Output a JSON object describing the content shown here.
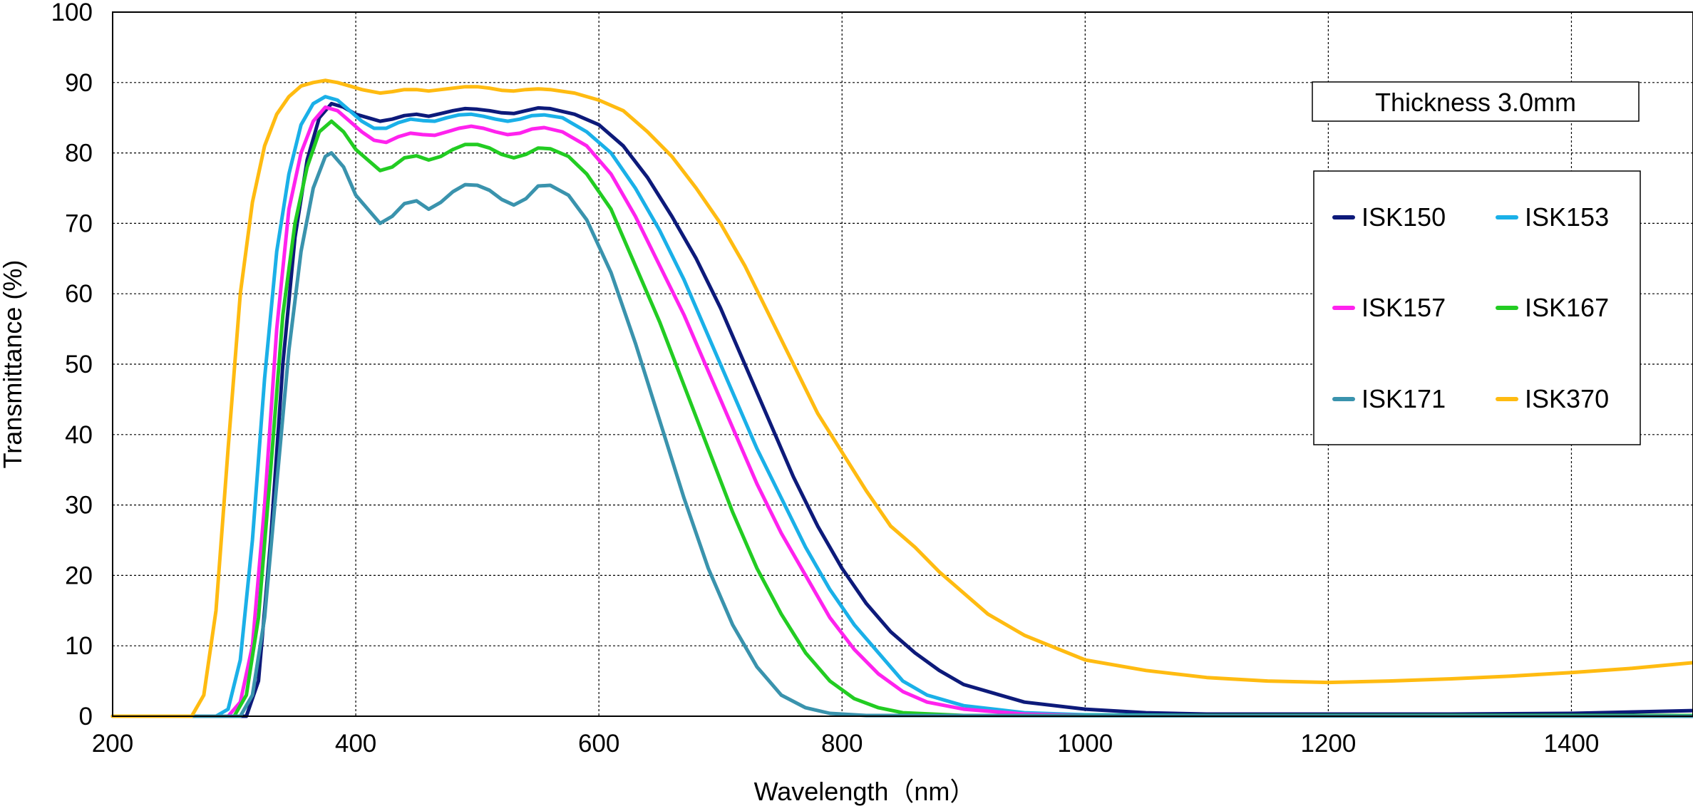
{
  "chart_data": {
    "type": "line",
    "title": "",
    "xlabel": "Wavelength（nm）",
    "ylabel": "Transmittance (%)",
    "xlim": [
      200,
      1500
    ],
    "ylim": [
      0,
      100
    ],
    "xticks": [
      200,
      400,
      600,
      800,
      1000,
      1200,
      1400
    ],
    "yticks": [
      0,
      10,
      20,
      30,
      40,
      50,
      60,
      70,
      80,
      90,
      100
    ],
    "grid": true,
    "annotation": "Thickness  3.0mm",
    "legend_position": "right",
    "series": [
      {
        "name": "ISK150",
        "color": "#0d1a7a",
        "points": [
          [
            200,
            0
          ],
          [
            280,
            0
          ],
          [
            300,
            0
          ],
          [
            310,
            0
          ],
          [
            320,
            5
          ],
          [
            330,
            25
          ],
          [
            340,
            50
          ],
          [
            350,
            68
          ],
          [
            360,
            79
          ],
          [
            370,
            85
          ],
          [
            380,
            87
          ],
          [
            390,
            86.5
          ],
          [
            400,
            85.5
          ],
          [
            410,
            85
          ],
          [
            420,
            84.5
          ],
          [
            430,
            84.8
          ],
          [
            440,
            85.3
          ],
          [
            450,
            85.5
          ],
          [
            460,
            85.2
          ],
          [
            470,
            85.6
          ],
          [
            480,
            86
          ],
          [
            490,
            86.3
          ],
          [
            500,
            86.2
          ],
          [
            510,
            86
          ],
          [
            520,
            85.7
          ],
          [
            530,
            85.6
          ],
          [
            540,
            86
          ],
          [
            550,
            86.4
          ],
          [
            560,
            86.3
          ],
          [
            580,
            85.5
          ],
          [
            600,
            84
          ],
          [
            620,
            81
          ],
          [
            640,
            76.5
          ],
          [
            660,
            71
          ],
          [
            680,
            65
          ],
          [
            700,
            58
          ],
          [
            720,
            50
          ],
          [
            740,
            42
          ],
          [
            760,
            34
          ],
          [
            780,
            27
          ],
          [
            800,
            21
          ],
          [
            820,
            16
          ],
          [
            840,
            12
          ],
          [
            860,
            9
          ],
          [
            880,
            6.5
          ],
          [
            900,
            4.5
          ],
          [
            950,
            2
          ],
          [
            1000,
            1
          ],
          [
            1050,
            0.5
          ],
          [
            1100,
            0.3
          ],
          [
            1200,
            0.3
          ],
          [
            1300,
            0.3
          ],
          [
            1400,
            0.4
          ],
          [
            1500,
            0.8
          ]
        ]
      },
      {
        "name": "ISK153",
        "color": "#1ab0e8",
        "points": [
          [
            200,
            0
          ],
          [
            270,
            0
          ],
          [
            285,
            0
          ],
          [
            295,
            1
          ],
          [
            305,
            8
          ],
          [
            315,
            25
          ],
          [
            325,
            48
          ],
          [
            335,
            66
          ],
          [
            345,
            77
          ],
          [
            355,
            84
          ],
          [
            365,
            87
          ],
          [
            375,
            88
          ],
          [
            385,
            87.5
          ],
          [
            395,
            86
          ],
          [
            405,
            84.5
          ],
          [
            415,
            83.5
          ],
          [
            425,
            83.5
          ],
          [
            435,
            84.3
          ],
          [
            445,
            84.8
          ],
          [
            455,
            84.6
          ],
          [
            465,
            84.5
          ],
          [
            475,
            85
          ],
          [
            485,
            85.4
          ],
          [
            495,
            85.5
          ],
          [
            505,
            85.2
          ],
          [
            515,
            84.8
          ],
          [
            525,
            84.5
          ],
          [
            535,
            84.8
          ],
          [
            545,
            85.3
          ],
          [
            555,
            85.4
          ],
          [
            570,
            85
          ],
          [
            590,
            83
          ],
          [
            610,
            80
          ],
          [
            630,
            75
          ],
          [
            650,
            69
          ],
          [
            670,
            62
          ],
          [
            690,
            54
          ],
          [
            710,
            46
          ],
          [
            730,
            38
          ],
          [
            750,
            31
          ],
          [
            770,
            24
          ],
          [
            790,
            18
          ],
          [
            810,
            13
          ],
          [
            830,
            9
          ],
          [
            850,
            5
          ],
          [
            870,
            3
          ],
          [
            900,
            1.5
          ],
          [
            950,
            0.5
          ],
          [
            1000,
            0.2
          ],
          [
            1100,
            0.1
          ],
          [
            1500,
            0.1
          ]
        ]
      },
      {
        "name": "ISK157",
        "color": "#ff22ee",
        "points": [
          [
            200,
            0
          ],
          [
            285,
            0
          ],
          [
            295,
            0
          ],
          [
            305,
            2
          ],
          [
            315,
            10
          ],
          [
            325,
            30
          ],
          [
            335,
            55
          ],
          [
            345,
            72
          ],
          [
            355,
            80
          ],
          [
            365,
            84.5
          ],
          [
            375,
            86.5
          ],
          [
            385,
            86
          ],
          [
            395,
            84.5
          ],
          [
            405,
            83
          ],
          [
            415,
            81.8
          ],
          [
            425,
            81.5
          ],
          [
            435,
            82.3
          ],
          [
            445,
            82.8
          ],
          [
            455,
            82.6
          ],
          [
            465,
            82.5
          ],
          [
            475,
            83
          ],
          [
            485,
            83.5
          ],
          [
            495,
            83.8
          ],
          [
            505,
            83.5
          ],
          [
            515,
            83
          ],
          [
            525,
            82.6
          ],
          [
            535,
            82.8
          ],
          [
            545,
            83.4
          ],
          [
            555,
            83.6
          ],
          [
            570,
            83
          ],
          [
            590,
            81
          ],
          [
            610,
            77
          ],
          [
            630,
            71
          ],
          [
            650,
            64
          ],
          [
            670,
            57
          ],
          [
            690,
            49
          ],
          [
            710,
            41
          ],
          [
            730,
            33
          ],
          [
            750,
            26
          ],
          [
            770,
            20
          ],
          [
            790,
            14
          ],
          [
            810,
            9.5
          ],
          [
            830,
            6
          ],
          [
            850,
            3.5
          ],
          [
            870,
            2
          ],
          [
            900,
            1
          ],
          [
            950,
            0.3
          ],
          [
            1000,
            0.1
          ],
          [
            1500,
            0.1
          ]
        ]
      },
      {
        "name": "ISK167",
        "color": "#22cc22",
        "points": [
          [
            200,
            0
          ],
          [
            290,
            0
          ],
          [
            300,
            0
          ],
          [
            310,
            3
          ],
          [
            320,
            14
          ],
          [
            330,
            35
          ],
          [
            340,
            57
          ],
          [
            350,
            70
          ],
          [
            360,
            78
          ],
          [
            370,
            83
          ],
          [
            380,
            84.5
          ],
          [
            390,
            83
          ],
          [
            400,
            80.5
          ],
          [
            410,
            79
          ],
          [
            420,
            77.5
          ],
          [
            430,
            78
          ],
          [
            440,
            79.3
          ],
          [
            450,
            79.6
          ],
          [
            460,
            79
          ],
          [
            470,
            79.5
          ],
          [
            480,
            80.5
          ],
          [
            490,
            81.2
          ],
          [
            500,
            81.2
          ],
          [
            510,
            80.7
          ],
          [
            520,
            79.8
          ],
          [
            530,
            79.3
          ],
          [
            540,
            79.8
          ],
          [
            550,
            80.7
          ],
          [
            560,
            80.6
          ],
          [
            575,
            79.5
          ],
          [
            590,
            77
          ],
          [
            610,
            72
          ],
          [
            630,
            64
          ],
          [
            650,
            56
          ],
          [
            670,
            47
          ],
          [
            690,
            38
          ],
          [
            710,
            29
          ],
          [
            730,
            21
          ],
          [
            750,
            14.5
          ],
          [
            770,
            9
          ],
          [
            790,
            5
          ],
          [
            810,
            2.5
          ],
          [
            830,
            1.2
          ],
          [
            850,
            0.5
          ],
          [
            900,
            0.1
          ],
          [
            1500,
            0.1
          ]
        ]
      },
      {
        "name": "ISK171",
        "color": "#3a93ad",
        "points": [
          [
            200,
            0
          ],
          [
            295,
            0
          ],
          [
            305,
            0
          ],
          [
            315,
            3
          ],
          [
            325,
            14
          ],
          [
            335,
            33
          ],
          [
            345,
            52
          ],
          [
            355,
            66
          ],
          [
            365,
            75
          ],
          [
            375,
            79.5
          ],
          [
            380,
            80
          ],
          [
            390,
            78
          ],
          [
            400,
            74
          ],
          [
            410,
            72
          ],
          [
            420,
            70
          ],
          [
            430,
            71
          ],
          [
            440,
            72.8
          ],
          [
            450,
            73.2
          ],
          [
            460,
            72
          ],
          [
            470,
            73
          ],
          [
            480,
            74.5
          ],
          [
            490,
            75.5
          ],
          [
            500,
            75.4
          ],
          [
            510,
            74.7
          ],
          [
            520,
            73.4
          ],
          [
            530,
            72.6
          ],
          [
            540,
            73.5
          ],
          [
            550,
            75.3
          ],
          [
            560,
            75.4
          ],
          [
            575,
            74
          ],
          [
            590,
            70.5
          ],
          [
            610,
            63
          ],
          [
            630,
            53
          ],
          [
            650,
            42
          ],
          [
            670,
            31
          ],
          [
            690,
            21
          ],
          [
            710,
            13
          ],
          [
            730,
            7
          ],
          [
            750,
            3
          ],
          [
            770,
            1.2
          ],
          [
            790,
            0.4
          ],
          [
            820,
            0.1
          ],
          [
            1500,
            0
          ]
        ]
      },
      {
        "name": "ISK370",
        "color": "#ffbb11",
        "points": [
          [
            200,
            0
          ],
          [
            255,
            0
          ],
          [
            265,
            0
          ],
          [
            275,
            3
          ],
          [
            285,
            15
          ],
          [
            295,
            38
          ],
          [
            305,
            60
          ],
          [
            315,
            73
          ],
          [
            325,
            81
          ],
          [
            335,
            85.5
          ],
          [
            345,
            88
          ],
          [
            355,
            89.5
          ],
          [
            365,
            90
          ],
          [
            375,
            90.3
          ],
          [
            385,
            90
          ],
          [
            395,
            89.5
          ],
          [
            405,
            89
          ],
          [
            420,
            88.5
          ],
          [
            430,
            88.7
          ],
          [
            440,
            89
          ],
          [
            450,
            89
          ],
          [
            460,
            88.8
          ],
          [
            470,
            89
          ],
          [
            480,
            89.2
          ],
          [
            490,
            89.4
          ],
          [
            500,
            89.4
          ],
          [
            510,
            89.2
          ],
          [
            520,
            88.9
          ],
          [
            530,
            88.8
          ],
          [
            540,
            89
          ],
          [
            550,
            89.1
          ],
          [
            560,
            89
          ],
          [
            580,
            88.5
          ],
          [
            600,
            87.5
          ],
          [
            620,
            86
          ],
          [
            640,
            83
          ],
          [
            660,
            79.5
          ],
          [
            680,
            75
          ],
          [
            700,
            70
          ],
          [
            720,
            64
          ],
          [
            740,
            57
          ],
          [
            760,
            50
          ],
          [
            780,
            43
          ],
          [
            800,
            37.5
          ],
          [
            820,
            32
          ],
          [
            840,
            27
          ],
          [
            860,
            24
          ],
          [
            880,
            20.5
          ],
          [
            900,
            17.5
          ],
          [
            920,
            14.5
          ],
          [
            950,
            11.5
          ],
          [
            1000,
            8
          ],
          [
            1050,
            6.5
          ],
          [
            1100,
            5.5
          ],
          [
            1150,
            5
          ],
          [
            1200,
            4.8
          ],
          [
            1250,
            5
          ],
          [
            1300,
            5.3
          ],
          [
            1350,
            5.7
          ],
          [
            1400,
            6.2
          ],
          [
            1450,
            6.8
          ],
          [
            1500,
            7.6
          ]
        ]
      }
    ]
  }
}
